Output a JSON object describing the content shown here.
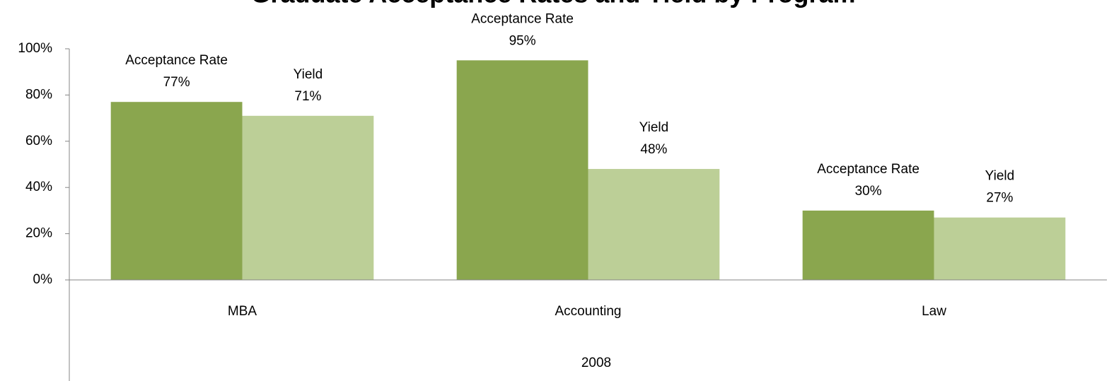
{
  "chart_data": {
    "type": "bar",
    "title": "Graduate Acceptance Rates and Yield by Program",
    "categories": [
      "MBA",
      "Accounting",
      "Law"
    ],
    "group": "2008",
    "series": [
      {
        "name": "Acceptance Rate",
        "color": "#8aa64e",
        "values": [
          77,
          95,
          30
        ],
        "value_labels": [
          "77%",
          "95%",
          "30%"
        ]
      },
      {
        "name": "Yield",
        "color": "#bccf97",
        "values": [
          71,
          48,
          27
        ],
        "value_labels": [
          "71%",
          "48%",
          "27%"
        ]
      }
    ],
    "ylim": [
      0,
      100
    ],
    "yticks": [
      {
        "value": 0,
        "label": "0%"
      },
      {
        "value": 20,
        "label": "20%"
      },
      {
        "value": 40,
        "label": "40%"
      },
      {
        "value": 60,
        "label": "60%"
      },
      {
        "value": 80,
        "label": "80%"
      },
      {
        "value": 100,
        "label": "100%"
      }
    ],
    "grid": false
  }
}
